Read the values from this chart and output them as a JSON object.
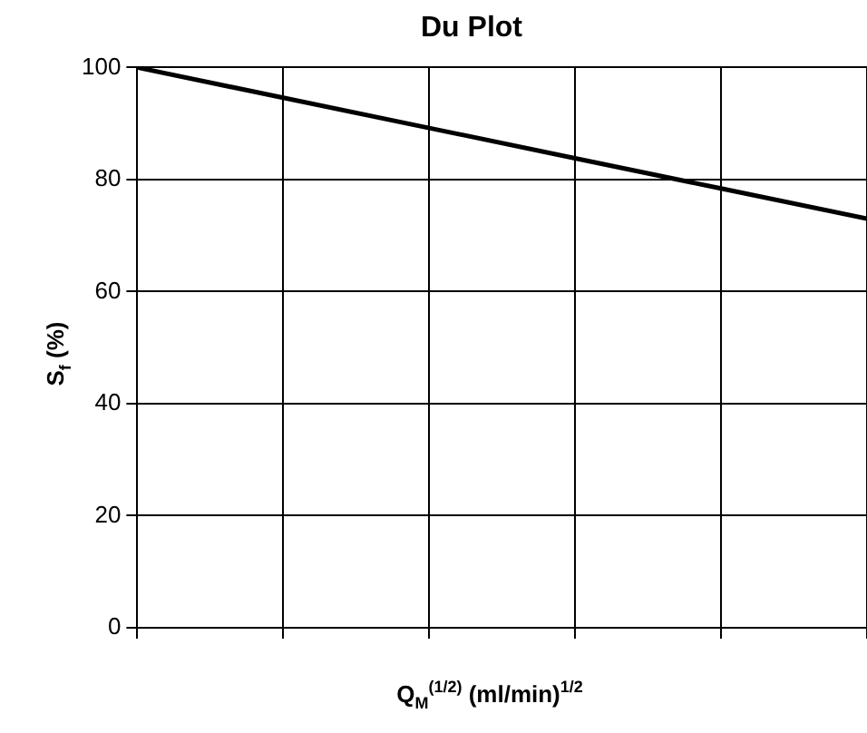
{
  "chart_data": {
    "type": "line",
    "title": "Du Plot",
    "xlabel": "Q$_{M}$$^{(1/2)}$ (ml/min)$^{1/2}$",
    "ylabel": "S$_{f}$ (%)",
    "categories": [
      null,
      null,
      null,
      null,
      null,
      null
    ],
    "series": [
      {
        "color": "#000000",
        "values": [
          100,
          94.6,
          89.2,
          83.8,
          78.4,
          73
        ]
      }
    ],
    "ylim": [
      0,
      100
    ],
    "yticks": [
      0,
      20,
      40,
      60,
      80,
      100
    ],
    "grid": true,
    "legend": false,
    "marker": "none",
    "line_style": "solid",
    "tick_labels": "y"
  }
}
